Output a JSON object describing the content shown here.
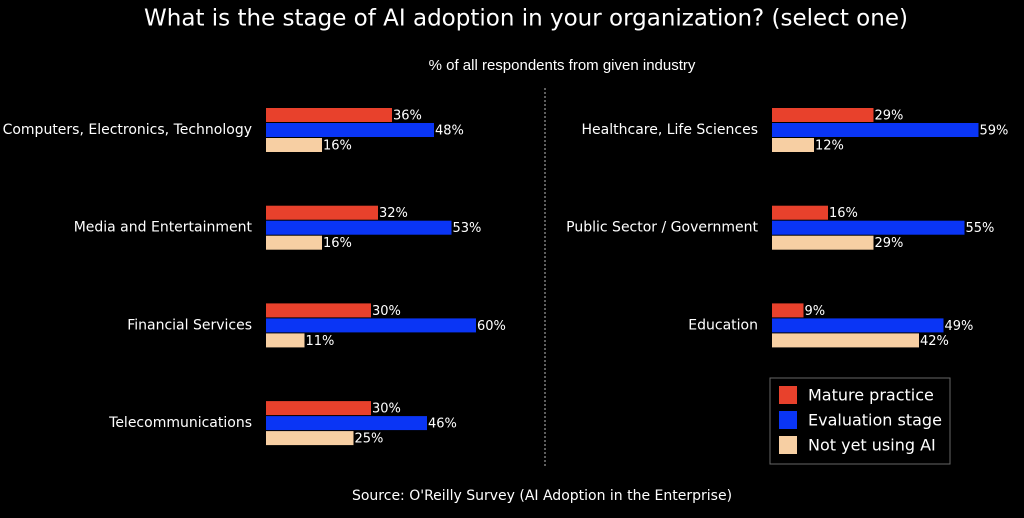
{
  "chart_data": {
    "type": "bar",
    "orientation": "horizontal",
    "title": "What is the stage of AI adoption in your organization? (select one)",
    "subtitle": "% of all respondents from given industry",
    "source": "Source:  O'Reilly Survey (AI Adoption in the Enterprise)",
    "categories": [
      "Computers, Electronics, Technology",
      "Media and Entertainment",
      "Financial Services",
      "Telecommunications",
      "Healthcare, Life Sciences",
      "Public Sector / Government",
      "Education"
    ],
    "series": [
      {
        "name": "Mature practice",
        "color": "#e8412c",
        "values": [
          36,
          32,
          30,
          30,
          29,
          16,
          9
        ],
        "value_labels": [
          "36%",
          "32%",
          "30%",
          "30%",
          "29%",
          "16%",
          "9%"
        ]
      },
      {
        "name": "Evaluation stage",
        "color": "#0a35f5",
        "values": [
          48,
          53,
          60,
          46,
          59,
          55,
          49
        ],
        "value_labels": [
          "48%",
          "53%",
          "60%",
          "46%",
          "59%",
          "55%",
          "49%"
        ]
      },
      {
        "name": "Not yet using AI",
        "color": "#f7cfa3",
        "values": [
          16,
          16,
          11,
          25,
          12,
          29,
          42
        ],
        "value_labels": [
          "16%",
          "16%",
          "11%",
          "25%",
          "12%",
          "29%",
          "42%"
        ]
      }
    ]
  }
}
